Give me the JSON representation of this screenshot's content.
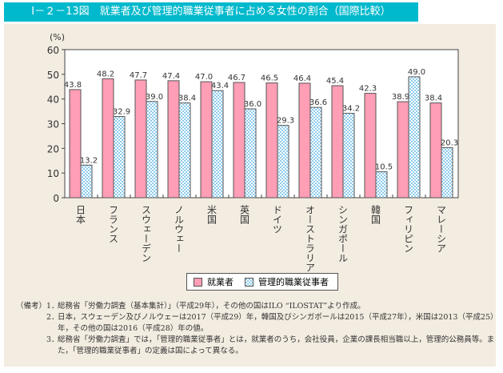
{
  "title": "Ⅰ－２－13図　就業者及び管理的職業従事者に占める女性の割合（国際比較）",
  "colors": {
    "title_bg": "#00b9cc",
    "panel_bg": "#f3ece1",
    "employed": "#ff9eb5",
    "managers": "#8fcdf0"
  },
  "chart_data": {
    "type": "bar",
    "title": "就業者及び管理的職業従事者に占める女性の割合（国際比較）",
    "ylabel": "(%)",
    "ylim": [
      0,
      60
    ],
    "yticks": [
      "0",
      "10",
      "20",
      "30",
      "40",
      "50",
      "60"
    ],
    "categories": [
      "日本",
      "フランス",
      "スウェーデン",
      "ノルウェー",
      "米国",
      "英国",
      "ドイツ",
      "オーストラリア",
      "シンガポール",
      "韓国",
      "フィリピン",
      "マレーシア"
    ],
    "series": [
      {
        "name": "就業者",
        "values": [
          43.8,
          48.2,
          47.7,
          47.4,
          47.0,
          46.7,
          46.5,
          46.4,
          45.4,
          42.3,
          38.9,
          38.4
        ],
        "labels": [
          "43.8",
          "48.2",
          "47.7",
          "47.4",
          "47.0",
          "46.7",
          "46.5",
          "46.4",
          "45.4",
          "42.3",
          "38.9",
          "38.4"
        ]
      },
      {
        "name": "管理的職業従事者",
        "values": [
          13.2,
          32.9,
          39.0,
          38.4,
          43.4,
          36.0,
          29.3,
          36.6,
          34.2,
          10.5,
          49.0,
          20.3
        ],
        "labels": [
          "13.2",
          "32.9",
          "39.0",
          "38.4",
          "43.4",
          "36.0",
          "29.3",
          "36.6",
          "34.2",
          "10.5",
          "49.0",
          "20.3"
        ]
      }
    ],
    "legend_position": "bottom",
    "grid": false
  },
  "notes": {
    "head": "（備考）",
    "items": [
      {
        "num": "1．",
        "text": "総務省「労働力調査（基本集計）」（平成29年），その他の国はILO “ILOSTAT”より作成。"
      },
      {
        "num": "2．",
        "text": "日本，スウェーデン及びノルウェーは2017（平成29）年，韓国及びシンガポールは2015（平成27年），米国は2013（平成25）年，その他の国は2016（平成28）年の値。"
      },
      {
        "num": "3．",
        "text": "総務省「労働力調査」では，「管理的職業従事者」とは，就業者のうち，会社役員，企業の課長相当職以上，管理的公務員等。また，「管理的職業従事者」の定義は国によって異なる。"
      }
    ]
  }
}
